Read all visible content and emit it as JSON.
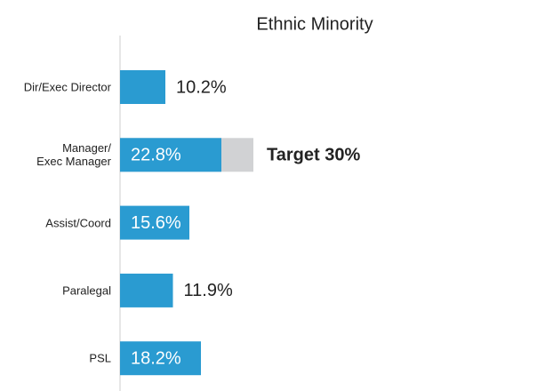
{
  "chart_data": {
    "type": "bar",
    "orientation": "horizontal",
    "title": "Ethnic Minority",
    "categories": [
      "Dir/Exec Director",
      "Manager/\nExec Manager",
      "Assist/Coord",
      "Paralegal",
      "PSL"
    ],
    "values": [
      10.2,
      22.8,
      15.6,
      11.9,
      18.2
    ],
    "value_labels": [
      "10.2%",
      "22.8%",
      "15.6%",
      "11.9%",
      "18.2%"
    ],
    "color": "#2a9bd1",
    "target": {
      "category": 1,
      "value": 30,
      "label": "Target 30%",
      "color": "#d1d2d4"
    }
  }
}
